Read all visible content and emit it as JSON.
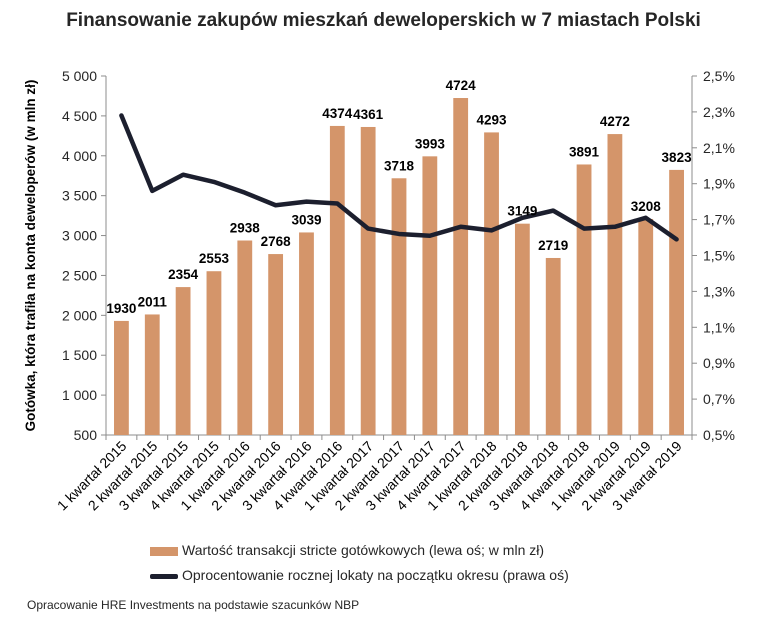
{
  "title": "Finansowanie zakupów mieszkań deweloperskich w 7 miastach Polski",
  "source_note": "Opracowanie HRE Investments na podstawie szacunków NBP",
  "legend": {
    "bars": "Wartość transakcji stricte gotówkowych (lewa oś; w mln zł)",
    "line": "Oprocentowanie rocznej lokaty na początku okresu (prawa oś)"
  },
  "chart_data": {
    "type": "bar",
    "title": "Finansowanie zakupów mieszkań deweloperskich w 7 miastach Polski",
    "ylabel": "Gotówka, która trafiła na konta deweloperów (w mln zł)",
    "xlabel": "",
    "ylim": [
      500,
      5000
    ],
    "y2lim": [
      0.5,
      2.5
    ],
    "yticks": [
      "500",
      "1 000",
      "1 500",
      "2 000",
      "2 500",
      "3 000",
      "3 500",
      "4 000",
      "4 500",
      "5 000"
    ],
    "y2ticks": [
      "0,5%",
      "0,7%",
      "0,9%",
      "1,1%",
      "1,3%",
      "1,5%",
      "1,7%",
      "1,9%",
      "2,1%",
      "2,3%",
      "2,5%"
    ],
    "grid": false,
    "legend_position": "bottom",
    "categories": [
      "1 kwartał 2015",
      "2 kwartał 2015",
      "3 kwartał 2015",
      "4 kwartał 2015",
      "1 kwartał 2016",
      "2 kwartał 2016",
      "3 kwartał 2016",
      "4 kwartał 2016",
      "1 kwartał 2017",
      "2 kwartał 2017",
      "3 kwartał 2017",
      "4 kwartał 2017",
      "1 kwartał 2018",
      "2 kwartał 2018",
      "3 kwartał 2018",
      "4 kwartał 2018",
      "1 kwartał 2019",
      "2 kwartał 2019",
      "3 kwartał 2019"
    ],
    "series": [
      {
        "name": "Wartość transakcji stricte gotówkowych (lewa oś; w mln zł)",
        "type": "bar",
        "axis": "left",
        "color": "#d4956a",
        "values": [
          1930,
          2011,
          2354,
          2553,
          2938,
          2768,
          3039,
          4374,
          4361,
          3718,
          3993,
          4724,
          4293,
          3149,
          2719,
          3891,
          4272,
          3208,
          3823
        ]
      },
      {
        "name": "Oprocentowanie rocznej lokaty na początku okresu (prawa oś)",
        "type": "line",
        "axis": "right",
        "color": "#1c1f2e",
        "values": [
          2.28,
          1.86,
          1.95,
          1.91,
          1.85,
          1.78,
          1.8,
          1.79,
          1.65,
          1.62,
          1.61,
          1.66,
          1.64,
          1.71,
          1.75,
          1.65,
          1.66,
          1.71,
          1.59
        ]
      }
    ]
  }
}
